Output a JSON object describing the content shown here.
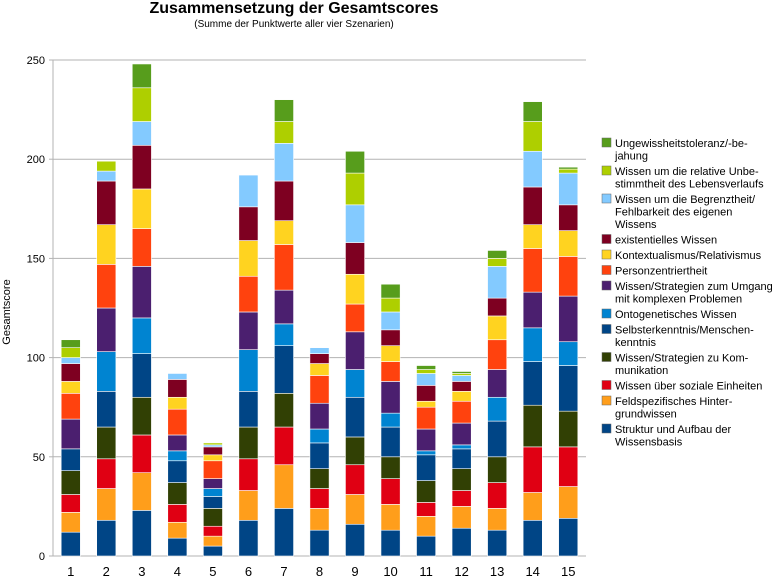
{
  "chart_data": {
    "type": "bar",
    "stacked": true,
    "title": "Zusammensetzung der Gesamtscores",
    "subtitle": "(Summe der Punktwerte aller vier Szenarien)",
    "xlabel": "",
    "ylabel": "Gesamtscore",
    "ylim": [
      0,
      250
    ],
    "yticks": [
      "0",
      "50",
      "100",
      "150",
      "200",
      "250"
    ],
    "grid": true,
    "legend_position": "right",
    "categories": [
      "1",
      "2",
      "3",
      "4",
      "5",
      "6",
      "7",
      "8",
      "9",
      "10",
      "11",
      "12",
      "13",
      "14",
      "15"
    ],
    "series": [
      {
        "name": "Struktur und Aufbau der Wissensbasis",
        "color": "#004586",
        "values": [
          12,
          18,
          23,
          9,
          5,
          18,
          24,
          13,
          16,
          13,
          10,
          14,
          13,
          18,
          19
        ]
      },
      {
        "name": "Feldspezifisches Hinter-grundwissen",
        "color": "#ff9e1b",
        "values": [
          10,
          16,
          19,
          8,
          5,
          15,
          22,
          11,
          15,
          13,
          10,
          11,
          11,
          14,
          16
        ]
      },
      {
        "name": "Wissen über soziale Einheiten",
        "color": "#e00013",
        "values": [
          9,
          15,
          19,
          9,
          5,
          16,
          19,
          10,
          15,
          13,
          7,
          8,
          13,
          23,
          20
        ]
      },
      {
        "name": "Wissen/Strategien zu Kom-munikation",
        "color": "#314004",
        "values": [
          12,
          16,
          19,
          11,
          9,
          16,
          17,
          10,
          14,
          11,
          11,
          11,
          13,
          21,
          18
        ]
      },
      {
        "name": "Selbsterkenntnis/Menschen-kenntnis",
        "color": "#004586",
        "values": [
          11,
          18,
          22,
          11,
          6,
          18,
          24,
          13,
          20,
          15,
          13,
          10,
          18,
          22,
          23
        ]
      },
      {
        "name": "Ontogenetisches Wissen",
        "color": "#0084d1",
        "values": [
          0,
          20,
          18,
          5,
          4,
          21,
          11,
          7,
          14,
          7,
          2,
          2,
          12,
          17,
          12
        ]
      },
      {
        "name": "Wissen/Strategien zum Umgang mit komplexen Problemen",
        "color": "#4b1f6f",
        "values": [
          15,
          22,
          26,
          8,
          5,
          19,
          17,
          13,
          19,
          16,
          11,
          11,
          14,
          18,
          23
        ]
      },
      {
        "name": "Personzentriertheit",
        "color": "#ff420e",
        "values": [
          13,
          22,
          19,
          13,
          9,
          18,
          23,
          14,
          14,
          10,
          11,
          11,
          15,
          22,
          20
        ]
      },
      {
        "name": "Kontextualismus/Relativismus",
        "color": "#ffd320",
        "values": [
          6,
          20,
          20,
          6,
          3,
          18,
          12,
          6,
          15,
          8,
          3,
          5,
          12,
          12,
          13
        ]
      },
      {
        "name": "existentielles Wissen",
        "color": "#7e0021",
        "values": [
          9,
          22,
          22,
          9,
          4,
          17,
          20,
          5,
          16,
          8,
          8,
          5,
          9,
          19,
          13
        ]
      },
      {
        "name": "Wissen um die Begrenztheit/ Fehlbarkeit des eigenen Wissens",
        "color": "#83caff",
        "values": [
          3,
          5,
          12,
          3,
          1,
          16,
          19,
          3,
          19,
          9,
          6,
          3,
          16,
          18,
          16
        ]
      },
      {
        "name": "Wissen um die relative Unbe-stimmtheit des Lebensverlaufs",
        "color": "#aecf00",
        "values": [
          5,
          5,
          17,
          0,
          1,
          0,
          11,
          0,
          16,
          7,
          2,
          1,
          4,
          15,
          2
        ]
      },
      {
        "name": "Ungewissheitstoleranz/-be-jahung",
        "color": "#579d1c",
        "values": [
          4,
          0,
          12,
          0,
          0,
          0,
          11,
          0,
          11,
          7,
          2,
          1,
          4,
          10,
          1
        ]
      }
    ],
    "legend_entries": [
      {
        "lines": [
          "Ungewissheitstoleranz/-be-",
          "jahung"
        ],
        "color": "#579d1c"
      },
      {
        "lines": [
          "Wissen um die relative Unbe-",
          "stimmtheit des Lebensverlaufs"
        ],
        "color": "#aecf00"
      },
      {
        "lines": [
          "Wissen um die Begrenztheit/",
          "Fehlbarkeit des eigenen",
          "Wissens"
        ],
        "color": "#83caff"
      },
      {
        "lines": [
          "existentielles Wissen"
        ],
        "color": "#7e0021"
      },
      {
        "lines": [
          "Kontextualismus/Relativismus"
        ],
        "color": "#ffd320"
      },
      {
        "lines": [
          "Personzentriertheit"
        ],
        "color": "#ff420e"
      },
      {
        "lines": [
          "Wissen/Strategien zum Umgang",
          "mit komplexen Problemen"
        ],
        "color": "#4b1f6f"
      },
      {
        "lines": [
          "Ontogenetisches Wissen"
        ],
        "color": "#0084d1"
      },
      {
        "lines": [
          "Selbsterkenntnis/Menschen-",
          "kenntnis"
        ],
        "color": "#004586"
      },
      {
        "lines": [
          "Wissen/Strategien zu Kom-",
          "munikation"
        ],
        "color": "#314004"
      },
      {
        "lines": [
          "Wissen über soziale Einheiten"
        ],
        "color": "#e00013"
      },
      {
        "lines": [
          "Feldspezifisches Hinter-",
          "grundwissen"
        ],
        "color": "#ff9e1b"
      },
      {
        "lines": [
          "Struktur und Aufbau der",
          "Wissensbasis"
        ],
        "color": "#004586"
      }
    ]
  }
}
